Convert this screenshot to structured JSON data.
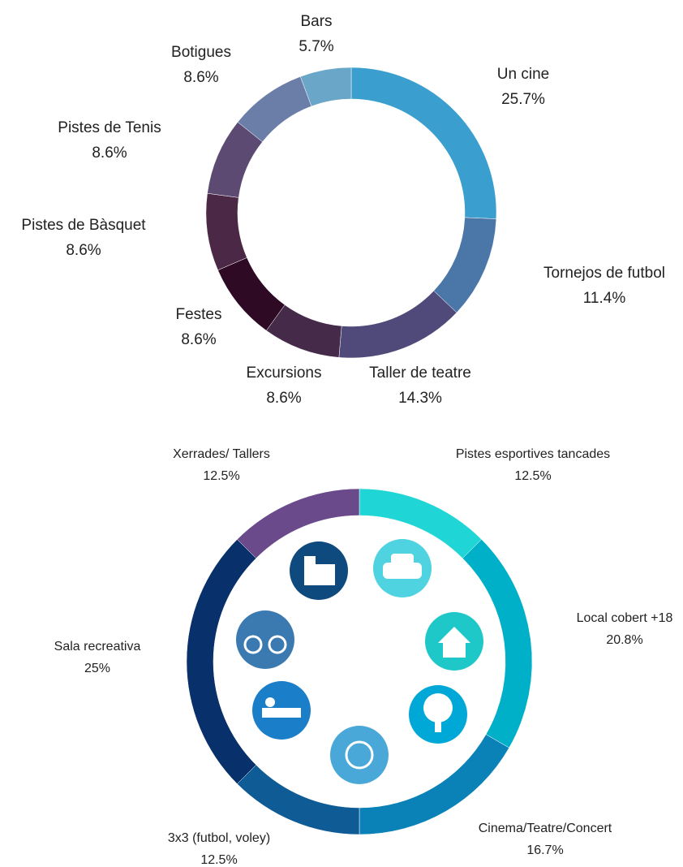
{
  "chart_data": [
    {
      "type": "pie",
      "donut": true,
      "categories": [
        "Un cine",
        "Tornejos de futbol",
        "Taller de teatre",
        "Excursions",
        "Festes",
        "Pistes de Bàsquet",
        "Pistes de Tenis",
        "Botigues",
        "Bars"
      ],
      "values": [
        25.7,
        11.4,
        14.3,
        8.6,
        8.6,
        8.6,
        8.6,
        8.6,
        5.7
      ],
      "value_labels": [
        "25.7%",
        "11.4%",
        "14.3%",
        "8.6%",
        "8.6%",
        "8.6%",
        "8.6%",
        "8.6%",
        "5.7%"
      ],
      "colors": [
        "#3a9fcf",
        "#4a76a8",
        "#4f4a7a",
        "#452a4a",
        "#2e0a24",
        "#4a2846",
        "#5c4a72",
        "#6a7ea8",
        "#6aa6c8"
      ]
    },
    {
      "type": "pie",
      "donut": true,
      "categories": [
        "Pistes esportives tancades",
        "Local cobert +18",
        "Cinema/Teatre/Concert",
        "3x3 (futbol, voley)",
        "Sala recreativa",
        "Xerrades/ Tallers"
      ],
      "values": [
        12.5,
        20.8,
        16.7,
        12.5,
        25,
        12.5
      ],
      "value_labels": [
        "12.5%",
        "20.8%",
        "16.7%",
        "12.5%",
        "25%",
        "12.5%"
      ],
      "colors": [
        "#1fd5d5",
        "#00b0c8",
        "#0a82b8",
        "#0f5b95",
        "#08306b",
        "#6a4a8a"
      ]
    }
  ]
}
